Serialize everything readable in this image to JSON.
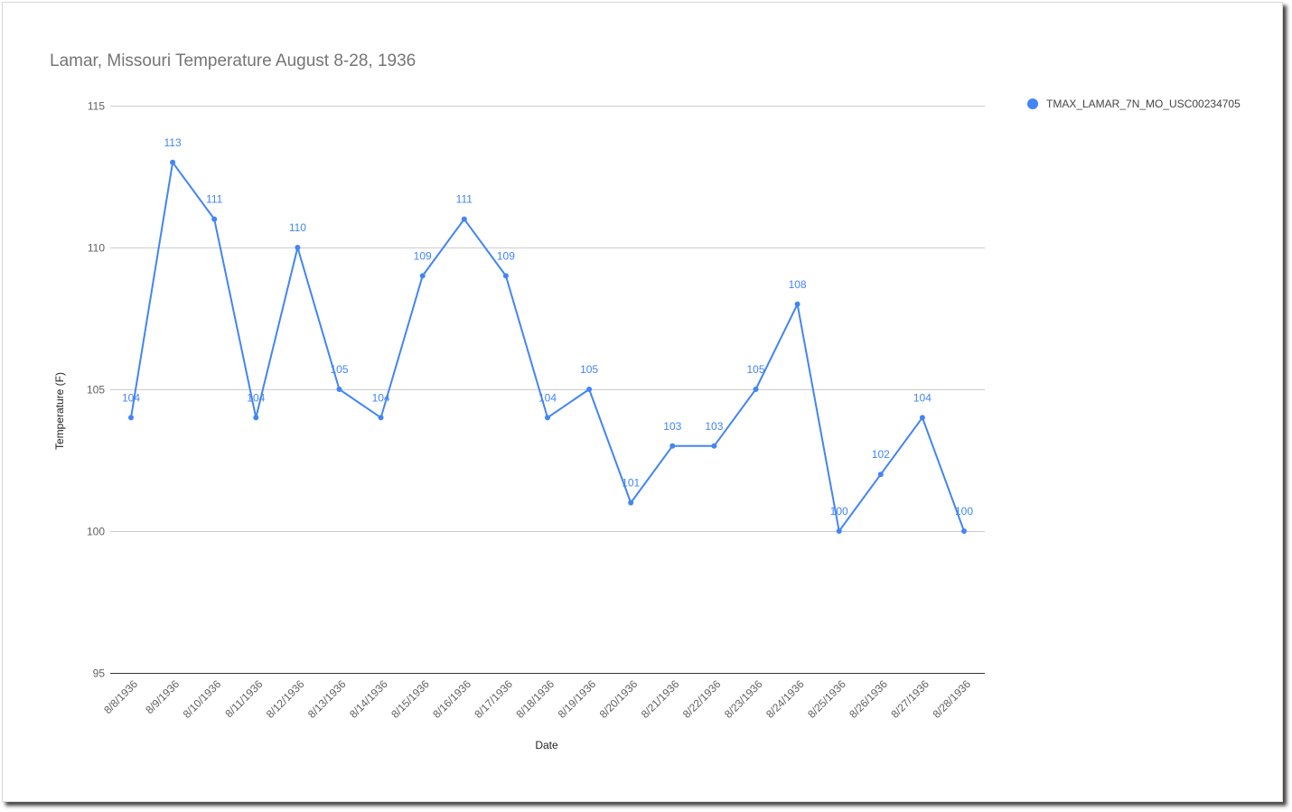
{
  "chart_data": {
    "type": "line",
    "title": "Lamar, Missouri Temperature August 8-28, 1936",
    "xlabel": "Date",
    "ylabel": "Temperature (F)",
    "categories": [
      "8/8/1936",
      "8/9/1936",
      "8/10/1936",
      "8/11/1936",
      "8/12/1936",
      "8/13/1936",
      "8/14/1936",
      "8/15/1936",
      "8/16/1936",
      "8/17/1936",
      "8/18/1936",
      "8/19/1936",
      "8/20/1936",
      "8/21/1936",
      "8/22/1936",
      "8/23/1936",
      "8/24/1936",
      "8/25/1936",
      "8/26/1936",
      "8/27/1936",
      "8/28/1936"
    ],
    "series": [
      {
        "name": "TMAX_LAMAR_7N_MO_USC00234705",
        "color": "#4285f4",
        "values": [
          104,
          113,
          111,
          104,
          110,
          105,
          104,
          109,
          111,
          109,
          104,
          105,
          101,
          103,
          103,
          105,
          108,
          100,
          102,
          104,
          100
        ]
      }
    ],
    "ylim": [
      95,
      115
    ],
    "yticks": [
      95,
      100,
      105,
      110,
      115
    ],
    "grid": true,
    "data_labels": true,
    "legend_position": "right"
  },
  "colors": {
    "series": "#4285f4",
    "gridline": "#cccccc",
    "title_text": "#757575"
  }
}
